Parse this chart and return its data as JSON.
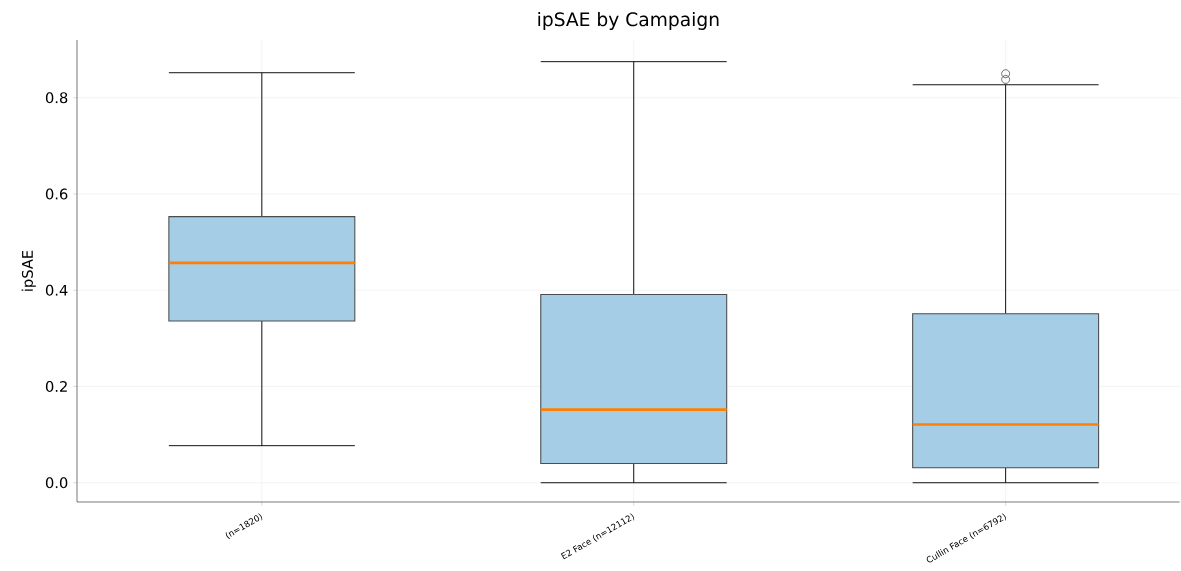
{
  "chart_data": {
    "type": "box",
    "title": "ipSAE by Campaign",
    "ylabel": "ipSAE",
    "categories": [
      "(n=1820)",
      "E2 Face (n=12112)",
      "Cullin Face (n=6792)"
    ],
    "series": [
      {
        "color": "#a6cde6",
        "boxes": [
          {
            "low": 0.077,
            "q1": 0.336,
            "median": 0.457,
            "q3": 0.553,
            "high": 0.852
          },
          {
            "low": 0.0,
            "q1": 0.04,
            "median": 0.152,
            "q3": 0.391,
            "high": 0.875
          },
          {
            "low": 0.0,
            "q1": 0.031,
            "median": 0.121,
            "q3": 0.351,
            "high": 0.827,
            "outliers": [
              0.838,
              0.85
            ]
          }
        ]
      }
    ],
    "ylim": [
      -0.04,
      0.92
    ],
    "yticks": [
      {
        "value": 0,
        "label": "0.0"
      },
      0.2,
      0.4,
      0.6,
      0.8
    ],
    "grid": true
  }
}
